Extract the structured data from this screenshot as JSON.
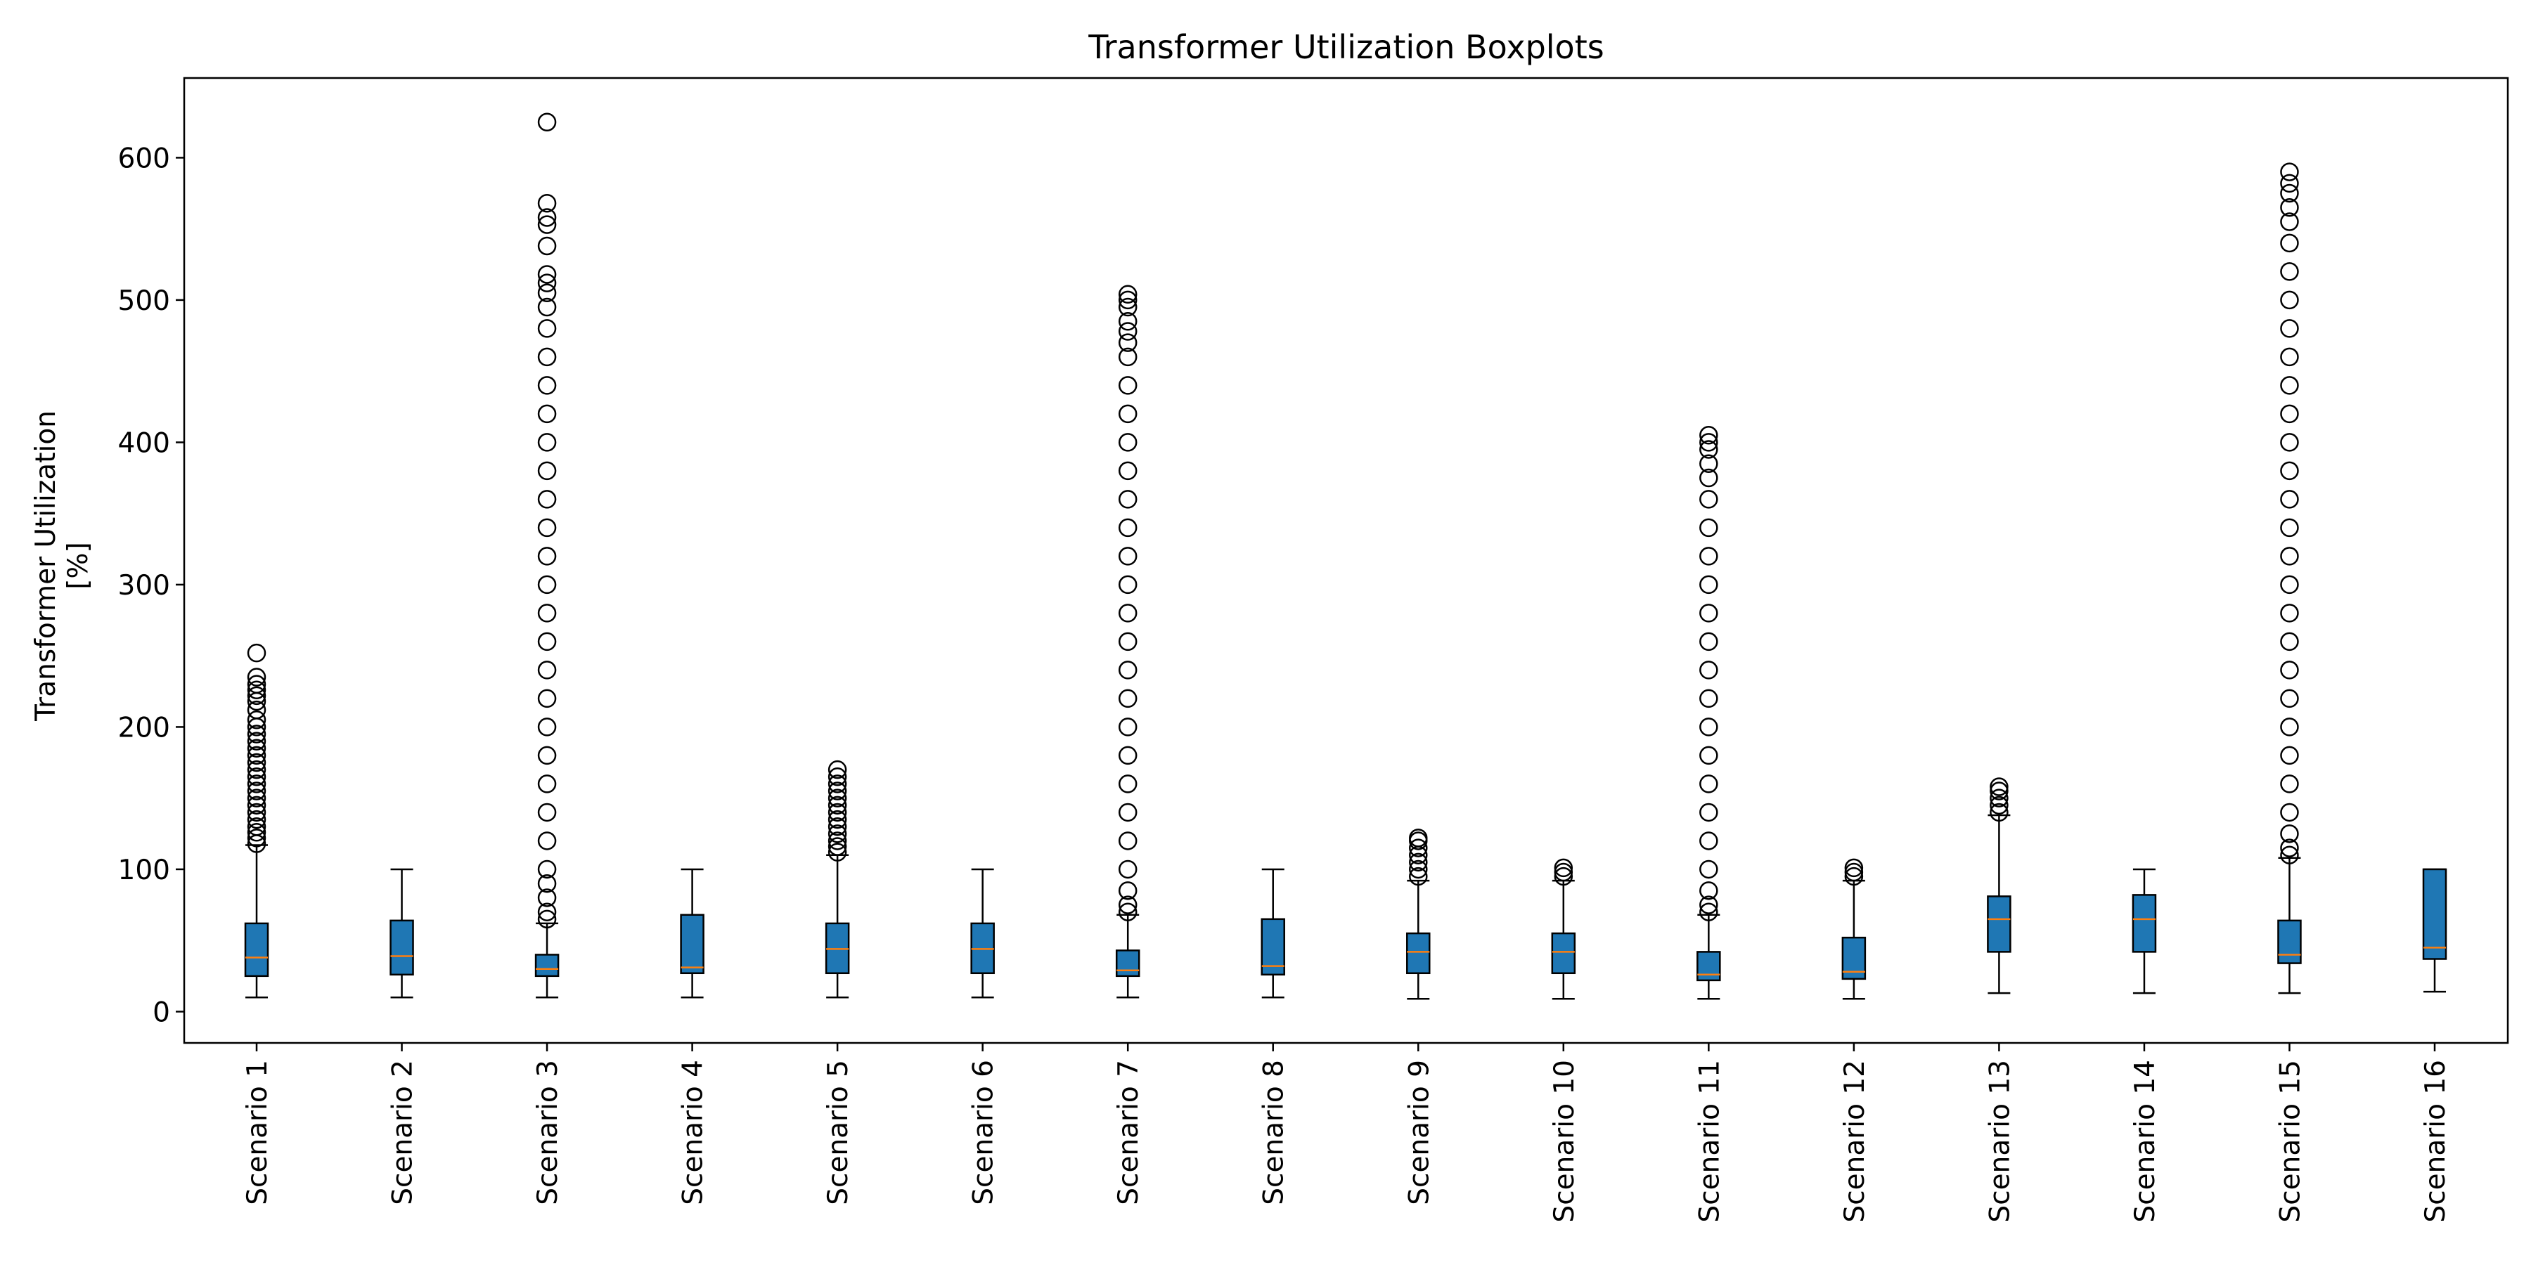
{
  "chart_data": {
    "type": "boxplot",
    "title": "Transformer Utilization Boxplots",
    "xlabel": "",
    "ylabel_lines": [
      "Transformer Utilization",
      "[%]"
    ],
    "ylim": [
      -22,
      656
    ],
    "yticks": [
      0,
      100,
      200,
      300,
      400,
      500,
      600
    ],
    "grid": false,
    "box_color": "#1f77b4",
    "median_color": "#ff7f0e",
    "categories": [
      "Scenario 1",
      "Scenario 2",
      "Scenario 3",
      "Scenario 4",
      "Scenario 5",
      "Scenario 6",
      "Scenario 7",
      "Scenario 8",
      "Scenario 9",
      "Scenario 10",
      "Scenario 11",
      "Scenario 12",
      "Scenario 13",
      "Scenario 14",
      "Scenario 15",
      "Scenario 16"
    ],
    "boxes": [
      {
        "whislo": 10,
        "q1": 25,
        "med": 38,
        "q3": 62,
        "whishi": 117,
        "fliers": [
          118,
          122,
          126,
          130,
          135,
          140,
          145,
          150,
          155,
          160,
          165,
          170,
          175,
          180,
          185,
          190,
          195,
          200,
          205,
          212,
          218,
          222,
          226,
          230,
          235,
          252
        ]
      },
      {
        "whislo": 10,
        "q1": 26,
        "med": 39,
        "q3": 64,
        "whishi": 100,
        "fliers": []
      },
      {
        "whislo": 10,
        "q1": 25,
        "med": 30,
        "q3": 40,
        "whishi": 62,
        "fliers": [
          65,
          70,
          80,
          90,
          100,
          120,
          140,
          160,
          180,
          200,
          220,
          240,
          260,
          280,
          300,
          320,
          340,
          360,
          380,
          400,
          420,
          440,
          460,
          480,
          495,
          505,
          512,
          518,
          538,
          553,
          558,
          568,
          625
        ]
      },
      {
        "whislo": 10,
        "q1": 27,
        "med": 31,
        "q3": 68,
        "whishi": 100,
        "fliers": []
      },
      {
        "whislo": 10,
        "q1": 27,
        "med": 44,
        "q3": 62,
        "whishi": 110,
        "fliers": [
          112,
          116,
          120,
          125,
          130,
          135,
          140,
          145,
          150,
          155,
          160,
          165,
          170
        ]
      },
      {
        "whislo": 10,
        "q1": 27,
        "med": 44,
        "q3": 62,
        "whishi": 100,
        "fliers": []
      },
      {
        "whislo": 10,
        "q1": 25,
        "med": 29,
        "q3": 43,
        "whishi": 68,
        "fliers": [
          70,
          75,
          85,
          100,
          120,
          140,
          160,
          180,
          200,
          220,
          240,
          260,
          280,
          300,
          320,
          340,
          360,
          380,
          400,
          420,
          440,
          460,
          470,
          478,
          485,
          495,
          500,
          504
        ]
      },
      {
        "whislo": 10,
        "q1": 26,
        "med": 32,
        "q3": 65,
        "whishi": 100,
        "fliers": []
      },
      {
        "whislo": 9,
        "q1": 27,
        "med": 42,
        "q3": 55,
        "whishi": 92,
        "fliers": [
          95,
          100,
          105,
          110,
          115,
          120,
          122
        ]
      },
      {
        "whislo": 9,
        "q1": 27,
        "med": 42,
        "q3": 55,
        "whishi": 92,
        "fliers": [
          95,
          98,
          101
        ]
      },
      {
        "whislo": 9,
        "q1": 22,
        "med": 26,
        "q3": 42,
        "whishi": 68,
        "fliers": [
          70,
          75,
          85,
          100,
          120,
          140,
          160,
          180,
          200,
          220,
          240,
          260,
          280,
          300,
          320,
          340,
          360,
          375,
          385,
          395,
          400,
          405
        ]
      },
      {
        "whislo": 9,
        "q1": 23,
        "med": 28,
        "q3": 52,
        "whishi": 92,
        "fliers": [
          95,
          98,
          101
        ]
      },
      {
        "whislo": 13,
        "q1": 42,
        "med": 65,
        "q3": 81,
        "whishi": 138,
        "fliers": [
          140,
          145,
          150,
          155,
          158
        ]
      },
      {
        "whislo": 13,
        "q1": 42,
        "med": 65,
        "q3": 82,
        "whishi": 100,
        "fliers": []
      },
      {
        "whislo": 13,
        "q1": 34,
        "med": 40,
        "q3": 64,
        "whishi": 108,
        "fliers": [
          110,
          115,
          125,
          140,
          160,
          180,
          200,
          220,
          240,
          260,
          280,
          300,
          320,
          340,
          360,
          380,
          400,
          420,
          440,
          460,
          480,
          500,
          520,
          540,
          555,
          565,
          575,
          582,
          590
        ]
      },
      {
        "whislo": 14,
        "q1": 37,
        "med": 45,
        "q3": 100,
        "whishi": 100,
        "fliers": []
      }
    ]
  }
}
